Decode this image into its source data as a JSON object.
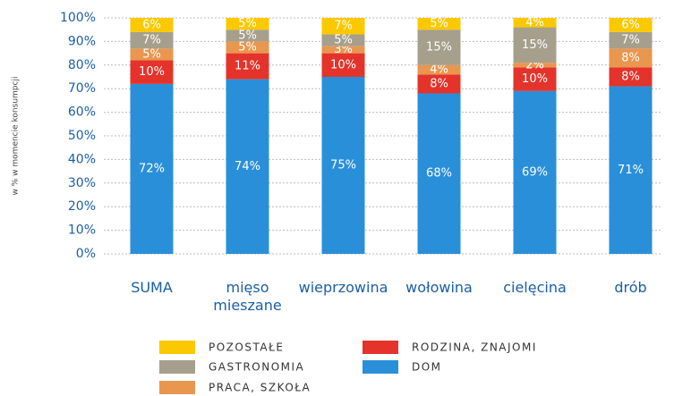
{
  "chart_data": {
    "type": "stacked_bar",
    "y_axis_label": "w % w momencie konsumpcji",
    "categories": [
      "SUMA",
      "mięso mieszane",
      "wieprzowina",
      "wołowina",
      "cielęcina",
      "drób"
    ],
    "series": [
      {
        "name": "DOM",
        "color": "#2a8fd9",
        "values": [
          72,
          74,
          75,
          68,
          69,
          71
        ],
        "value_labels": [
          "72%",
          "74%",
          "75%",
          "68%",
          "69%",
          "71%"
        ]
      },
      {
        "name": "RODZINA, ZNAJOMI",
        "color": "#e4332b",
        "values": [
          10,
          11,
          10,
          8,
          10,
          8
        ],
        "value_labels": [
          "10%",
          "11%",
          "10%",
          "8%",
          "10%",
          "8%"
        ]
      },
      {
        "name": "PRACA, SZKOŁA",
        "color": "#e9964f",
        "values": [
          5,
          5,
          3,
          4,
          2,
          8
        ],
        "value_labels": [
          "5%",
          "5%",
          "3%",
          "4%",
          "2%",
          "8%"
        ]
      },
      {
        "name": "GASTRONOMIA",
        "color": "#a69f8b",
        "values": [
          7,
          5,
          5,
          15,
          15,
          7
        ],
        "value_labels": [
          "7%",
          "5%",
          "5%",
          "15%",
          "15%",
          "7%"
        ]
      },
      {
        "name": "POZOSTAŁE",
        "color": "#fcc800",
        "values": [
          6,
          5,
          7,
          5,
          4,
          6
        ],
        "value_labels": [
          "6%",
          "5%",
          "7%",
          "5%",
          "4%",
          "6%"
        ]
      }
    ],
    "ylim": [
      0,
      100
    ],
    "yticks": [
      {
        "value": 0,
        "label": "0%"
      },
      {
        "value": 10,
        "label": "10%"
      },
      {
        "value": 20,
        "label": "20%"
      },
      {
        "value": 30,
        "label": "30%"
      },
      {
        "value": 40,
        "label": "40%"
      },
      {
        "value": 50,
        "label": "50%"
      },
      {
        "value": 60,
        "label": "60%"
      },
      {
        "value": 70,
        "label": "70%"
      },
      {
        "value": 80,
        "label": "80%"
      },
      {
        "value": 90,
        "label": "90%"
      },
      {
        "value": 100,
        "label": "100%"
      }
    ],
    "grid": true
  }
}
